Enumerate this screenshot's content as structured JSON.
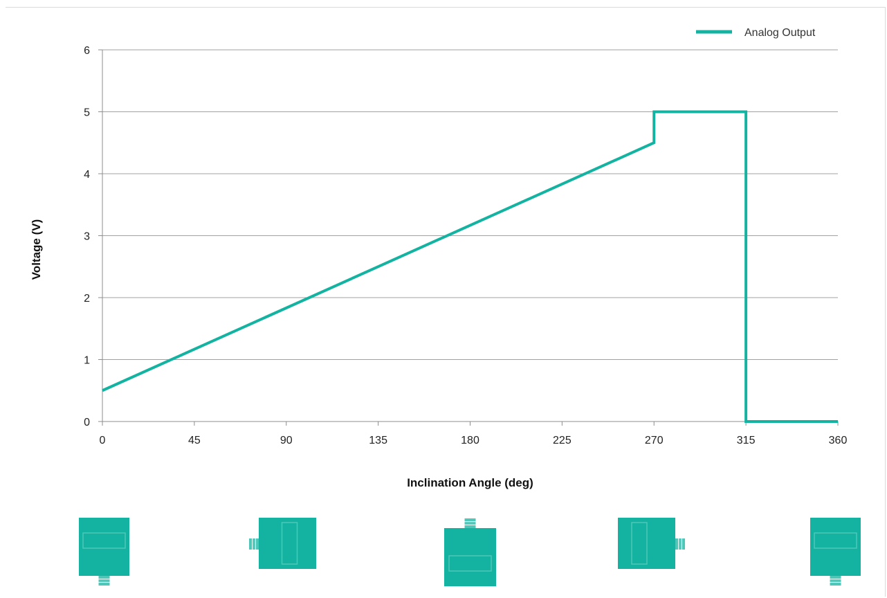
{
  "colors": {
    "series": "#14b3a1",
    "device": "#14b3a1",
    "device_window": "#4fc7b8"
  },
  "chart_data": {
    "type": "line",
    "title": "",
    "xlabel": "Inclination Angle (deg)",
    "ylabel": "Voltage (V)",
    "xlim": [
      0,
      360
    ],
    "ylim": [
      0,
      6
    ],
    "x_ticks": [
      "0",
      "45",
      "90",
      "135",
      "180",
      "225",
      "270",
      "315",
      "360"
    ],
    "y_ticks": [
      "0",
      "1",
      "2",
      "3",
      "4",
      "5",
      "6"
    ],
    "grid": true,
    "legend": "top-right",
    "series": [
      {
        "name": "Analog Output",
        "points": [
          [
            0,
            0.5
          ],
          [
            270,
            4.5
          ],
          [
            270,
            5.0
          ],
          [
            315,
            5.0
          ],
          [
            315,
            0.0
          ],
          [
            360,
            0.0
          ]
        ]
      }
    ],
    "device_orientations": [
      "connector-down",
      "connector-left",
      "connector-up",
      "connector-right",
      "connector-down"
    ]
  }
}
